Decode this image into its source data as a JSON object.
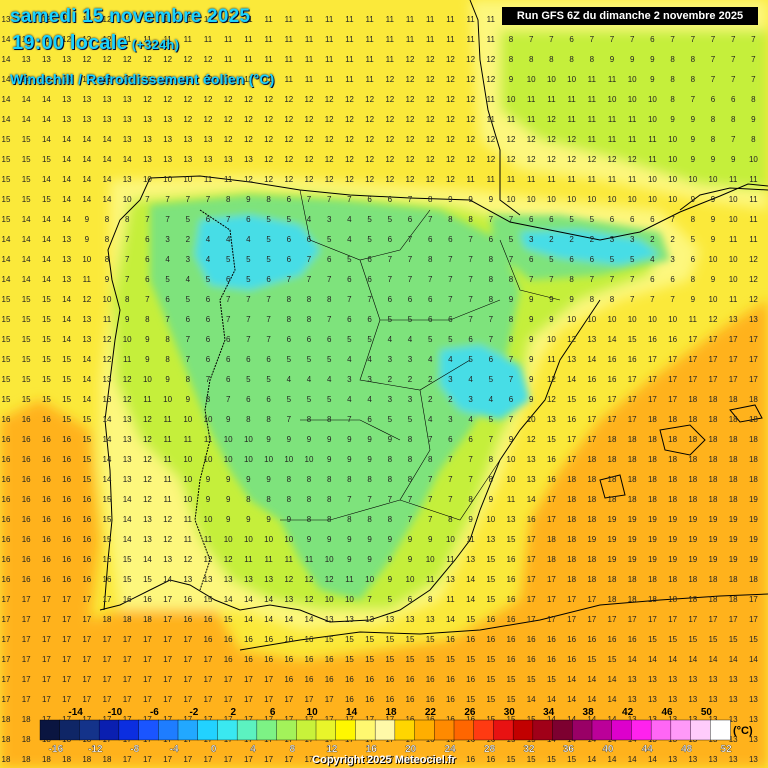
{
  "header": {
    "date_title": "samedi 15 novembre 2025",
    "time_title": "19:00 locale",
    "lead_time": "(+324h)",
    "parameter": "Windchill / Refroidissement éolien (°C)"
  },
  "run_info": "Run GFS 6Z du dimanche 2 novembre 2025",
  "copyright": "Copyright 2025 Meteociel.fr",
  "legend": {
    "unit": "(°C)",
    "scale_values": [
      -16,
      -14,
      -12,
      -10,
      -8,
      -6,
      -4,
      -2,
      0,
      2,
      4,
      6,
      8,
      10,
      12,
      14,
      16,
      18,
      20,
      22,
      24,
      26,
      28,
      30,
      32,
      34,
      36,
      38,
      40,
      42,
      44,
      46,
      48,
      50,
      52
    ],
    "colors": [
      "#0a1540",
      "#0f2666",
      "#14338a",
      "#0a1fb0",
      "#0b2ee0",
      "#1a55ff",
      "#1e7dff",
      "#22a8ff",
      "#22d2ff",
      "#3ae8f0",
      "#5cf2c0",
      "#7df285",
      "#a3f25a",
      "#c8f23a",
      "#e8f52a",
      "#fff700",
      "#fff870",
      "#fff9a8",
      "#ffd600",
      "#ffae00",
      "#ff8a00",
      "#ff6600",
      "#ff3a12",
      "#e81212",
      "#c20000",
      "#a00018",
      "#7d0030",
      "#990066",
      "#bb0099",
      "#dd00cc",
      "#ff22ee",
      "#ff66f5",
      "#ff99f8",
      "#ffccfb",
      "#ffffff"
    ]
  },
  "regions": [
    {
      "name": "offshore",
      "color": "#fbe93a"
    },
    {
      "name": "orange-warm",
      "color": "#ffb21e"
    },
    {
      "name": "light-yellow",
      "color": "#fdf77d"
    },
    {
      "name": "lime",
      "color": "#c5ef3a"
    },
    {
      "name": "green",
      "color": "#7ee37c"
    },
    {
      "name": "cyan",
      "color": "#46dde6"
    }
  ],
  "value_grid": {
    "rows": [
      [
        13,
        12,
        12,
        12,
        12,
        12,
        11,
        11,
        11,
        11,
        11,
        11,
        11,
        11,
        11,
        11,
        11,
        11,
        11,
        11,
        11,
        11,
        11,
        11,
        11,
        11,
        11,
        11,
        11,
        11,
        11,
        11,
        11,
        11,
        11,
        11,
        11,
        11
      ],
      [
        14,
        13,
        12,
        12,
        12,
        12,
        11,
        11,
        11,
        11,
        11,
        11,
        11,
        11,
        11,
        11,
        11,
        11,
        11,
        11,
        11,
        11,
        11,
        11,
        11,
        8,
        7,
        7,
        6,
        7,
        7,
        7,
        6,
        7,
        7,
        7,
        7,
        7
      ],
      [
        14,
        13,
        13,
        13,
        12,
        12,
        12,
        12,
        12,
        12,
        12,
        11,
        11,
        11,
        11,
        11,
        11,
        11,
        11,
        11,
        12,
        12,
        12,
        12,
        12,
        8,
        8,
        8,
        8,
        8,
        9,
        9,
        9,
        8,
        8,
        7,
        7,
        7
      ],
      [
        14,
        14,
        13,
        13,
        13,
        13,
        13,
        12,
        12,
        12,
        12,
        12,
        11,
        11,
        11,
        11,
        11,
        11,
        11,
        12,
        12,
        12,
        12,
        12,
        12,
        9,
        10,
        10,
        10,
        11,
        11,
        10,
        9,
        8,
        8,
        7,
        7,
        7
      ],
      [
        14,
        14,
        14,
        13,
        13,
        13,
        13,
        12,
        12,
        12,
        12,
        12,
        12,
        12,
        12,
        12,
        12,
        12,
        12,
        12,
        12,
        12,
        12,
        12,
        11,
        10,
        11,
        11,
        11,
        11,
        10,
        10,
        10,
        8,
        7,
        6,
        6,
        8
      ],
      [
        14,
        14,
        14,
        13,
        13,
        13,
        13,
        13,
        13,
        12,
        12,
        12,
        12,
        12,
        12,
        12,
        12,
        12,
        12,
        12,
        12,
        12,
        12,
        12,
        11,
        11,
        11,
        12,
        11,
        11,
        11,
        11,
        10,
        9,
        9,
        8,
        8,
        9
      ],
      [
        15,
        15,
        14,
        14,
        14,
        14,
        13,
        13,
        13,
        13,
        13,
        12,
        12,
        12,
        12,
        12,
        12,
        12,
        12,
        12,
        12,
        12,
        12,
        12,
        12,
        12,
        12,
        12,
        12,
        11,
        11,
        11,
        11,
        10,
        9,
        8,
        7,
        8
      ],
      [
        15,
        15,
        15,
        14,
        14,
        14,
        14,
        13,
        13,
        13,
        13,
        13,
        13,
        12,
        12,
        12,
        12,
        12,
        12,
        12,
        12,
        12,
        12,
        12,
        12,
        12,
        12,
        12,
        12,
        12,
        12,
        12,
        11,
        10,
        9,
        9,
        9,
        10
      ],
      [
        15,
        15,
        14,
        14,
        14,
        14,
        13,
        10,
        10,
        10,
        11,
        11,
        12,
        12,
        12,
        12,
        12,
        12,
        12,
        12,
        12,
        12,
        12,
        11,
        11,
        11,
        11,
        11,
        11,
        11,
        11,
        11,
        10,
        10,
        10,
        10,
        11,
        11
      ],
      [
        15,
        15,
        15,
        14,
        14,
        14,
        10,
        7,
        7,
        7,
        7,
        8,
        9,
        8,
        6,
        7,
        7,
        7,
        6,
        6,
        7,
        8,
        9,
        9,
        9,
        10,
        10,
        10,
        10,
        10,
        10,
        10,
        10,
        10,
        9,
        9,
        10,
        11
      ],
      [
        15,
        14,
        14,
        14,
        9,
        8,
        8,
        7,
        7,
        5,
        6,
        7,
        6,
        5,
        5,
        4,
        3,
        4,
        5,
        5,
        6,
        7,
        8,
        8,
        7,
        7,
        6,
        6,
        5,
        5,
        6,
        6,
        6,
        7,
        8,
        9,
        10,
        11
      ],
      [
        14,
        14,
        14,
        13,
        9,
        8,
        7,
        6,
        3,
        2,
        4,
        4,
        4,
        5,
        6,
        6,
        5,
        4,
        5,
        6,
        7,
        6,
        6,
        7,
        6,
        5,
        3,
        2,
        2,
        2,
        3,
        3,
        2,
        2,
        5,
        9,
        11,
        11
      ],
      [
        14,
        14,
        14,
        13,
        10,
        8,
        7,
        6,
        4,
        3,
        4,
        5,
        5,
        5,
        6,
        7,
        6,
        5,
        6,
        7,
        7,
        8,
        7,
        7,
        8,
        7,
        6,
        5,
        6,
        6,
        5,
        5,
        4,
        3,
        6,
        10,
        10,
        12
      ],
      [
        14,
        14,
        14,
        13,
        11,
        9,
        7,
        6,
        5,
        4,
        5,
        6,
        5,
        6,
        7,
        7,
        7,
        6,
        6,
        7,
        7,
        7,
        7,
        7,
        8,
        8,
        7,
        7,
        8,
        7,
        7,
        7,
        6,
        6,
        8,
        9,
        10,
        12
      ],
      [
        15,
        15,
        15,
        14,
        12,
        10,
        8,
        7,
        6,
        5,
        6,
        7,
        7,
        7,
        8,
        8,
        8,
        7,
        7,
        6,
        6,
        6,
        7,
        7,
        8,
        9,
        9,
        9,
        9,
        8,
        8,
        7,
        7,
        7,
        9,
        10,
        11,
        12
      ],
      [
        15,
        15,
        15,
        14,
        13,
        11,
        9,
        8,
        7,
        6,
        6,
        7,
        7,
        7,
        8,
        8,
        7,
        6,
        6,
        5,
        5,
        6,
        6,
        7,
        7,
        8,
        9,
        9,
        10,
        10,
        10,
        10,
        10,
        10,
        11,
        12,
        13,
        13
      ],
      [
        15,
        15,
        15,
        14,
        13,
        12,
        10,
        9,
        8,
        7,
        6,
        6,
        7,
        7,
        6,
        6,
        6,
        5,
        5,
        4,
        4,
        5,
        5,
        6,
        7,
        8,
        9,
        10,
        12,
        13,
        14,
        15,
        16,
        16,
        17,
        17,
        17,
        17
      ],
      [
        15,
        15,
        15,
        15,
        14,
        12,
        11,
        9,
        8,
        7,
        6,
        6,
        6,
        6,
        5,
        5,
        5,
        4,
        4,
        3,
        3,
        4,
        4,
        5,
        6,
        7,
        9,
        11,
        13,
        14,
        16,
        16,
        17,
        17,
        17,
        17,
        17,
        17
      ],
      [
        15,
        15,
        15,
        15,
        14,
        13,
        12,
        10,
        9,
        8,
        7,
        6,
        5,
        5,
        4,
        4,
        4,
        3,
        3,
        2,
        2,
        2,
        3,
        4,
        5,
        7,
        9,
        12,
        14,
        16,
        16,
        17,
        17,
        17,
        17,
        17,
        17,
        17
      ],
      [
        15,
        15,
        15,
        15,
        14,
        13,
        12,
        11,
        10,
        9,
        8,
        7,
        6,
        6,
        5,
        5,
        5,
        4,
        4,
        3,
        3,
        2,
        2,
        3,
        4,
        6,
        9,
        12,
        15,
        16,
        17,
        17,
        17,
        17,
        18,
        18,
        18,
        18
      ],
      [
        16,
        16,
        16,
        15,
        15,
        14,
        13,
        12,
        11,
        10,
        10,
        9,
        8,
        8,
        7,
        8,
        8,
        7,
        6,
        5,
        5,
        4,
        3,
        4,
        5,
        7,
        10,
        13,
        16,
        17,
        17,
        17,
        18,
        18,
        18,
        18,
        18,
        18
      ],
      [
        16,
        16,
        16,
        16,
        15,
        14,
        13,
        12,
        11,
        11,
        11,
        10,
        10,
        9,
        9,
        9,
        9,
        9,
        9,
        9,
        8,
        7,
        6,
        6,
        7,
        9,
        12,
        15,
        17,
        17,
        18,
        18,
        18,
        18,
        18,
        18,
        18,
        18
      ],
      [
        16,
        16,
        16,
        16,
        15,
        14,
        13,
        12,
        11,
        10,
        10,
        10,
        10,
        10,
        10,
        10,
        9,
        9,
        9,
        8,
        8,
        8,
        7,
        7,
        8,
        10,
        13,
        16,
        17,
        18,
        18,
        18,
        18,
        18,
        18,
        18,
        18,
        18
      ],
      [
        16,
        16,
        16,
        16,
        15,
        14,
        13,
        12,
        11,
        10,
        9,
        9,
        9,
        9,
        8,
        8,
        8,
        8,
        8,
        8,
        8,
        7,
        7,
        7,
        8,
        10,
        13,
        16,
        18,
        18,
        18,
        18,
        18,
        18,
        18,
        18,
        18,
        18
      ],
      [
        16,
        16,
        16,
        16,
        16,
        15,
        14,
        12,
        11,
        10,
        9,
        9,
        8,
        8,
        8,
        8,
        8,
        7,
        7,
        7,
        7,
        7,
        7,
        8,
        9,
        11,
        14,
        17,
        18,
        18,
        18,
        18,
        18,
        18,
        18,
        18,
        18,
        19
      ],
      [
        16,
        16,
        16,
        16,
        16,
        15,
        14,
        13,
        12,
        11,
        10,
        9,
        9,
        9,
        9,
        8,
        8,
        8,
        8,
        8,
        7,
        7,
        8,
        9,
        10,
        13,
        16,
        17,
        18,
        18,
        19,
        19,
        19,
        19,
        19,
        19,
        19,
        19
      ],
      [
        16,
        16,
        16,
        16,
        16,
        15,
        14,
        13,
        12,
        11,
        11,
        10,
        10,
        10,
        10,
        9,
        9,
        9,
        9,
        9,
        9,
        9,
        10,
        11,
        13,
        15,
        17,
        18,
        18,
        19,
        19,
        19,
        19,
        19,
        19,
        19,
        19,
        19
      ],
      [
        16,
        16,
        16,
        16,
        16,
        16,
        15,
        14,
        13,
        12,
        12,
        12,
        11,
        11,
        11,
        11,
        10,
        9,
        9,
        9,
        9,
        10,
        11,
        13,
        15,
        16,
        17,
        18,
        18,
        18,
        19,
        19,
        19,
        19,
        19,
        19,
        19,
        19
      ],
      [
        16,
        16,
        16,
        16,
        16,
        16,
        15,
        15,
        14,
        13,
        13,
        13,
        13,
        13,
        12,
        12,
        12,
        11,
        10,
        9,
        10,
        11,
        13,
        14,
        15,
        16,
        17,
        17,
        18,
        18,
        18,
        18,
        18,
        18,
        18,
        18,
        18,
        18
      ],
      [
        17,
        17,
        17,
        17,
        17,
        17,
        16,
        16,
        17,
        16,
        15,
        14,
        14,
        14,
        13,
        12,
        10,
        10,
        7,
        5,
        6,
        8,
        11,
        14,
        15,
        16,
        17,
        17,
        17,
        17,
        18,
        18,
        18,
        18,
        18,
        18,
        18,
        17
      ],
      [
        17,
        17,
        17,
        17,
        17,
        18,
        18,
        18,
        17,
        16,
        16,
        15,
        14,
        14,
        14,
        14,
        13,
        13,
        13,
        13,
        13,
        13,
        14,
        15,
        16,
        16,
        17,
        17,
        17,
        17,
        17,
        17,
        17,
        17,
        17,
        17,
        17,
        17
      ],
      [
        17,
        17,
        17,
        17,
        17,
        17,
        17,
        17,
        17,
        17,
        16,
        16,
        16,
        16,
        16,
        16,
        15,
        15,
        15,
        15,
        15,
        15,
        16,
        16,
        16,
        16,
        16,
        16,
        16,
        16,
        16,
        16,
        15,
        15,
        15,
        15,
        15,
        15
      ],
      [
        17,
        17,
        17,
        17,
        17,
        17,
        17,
        17,
        17,
        17,
        17,
        16,
        16,
        16,
        16,
        16,
        16,
        15,
        15,
        15,
        15,
        15,
        15,
        15,
        15,
        16,
        16,
        16,
        16,
        15,
        15,
        14,
        14,
        14,
        14,
        14,
        14,
        14
      ],
      [
        17,
        17,
        17,
        17,
        17,
        17,
        17,
        17,
        17,
        17,
        17,
        17,
        17,
        17,
        16,
        16,
        16,
        16,
        16,
        16,
        16,
        16,
        16,
        16,
        15,
        15,
        15,
        15,
        14,
        14,
        14,
        13,
        13,
        13,
        13,
        13,
        13,
        13
      ],
      [
        17,
        17,
        17,
        17,
        17,
        17,
        17,
        17,
        17,
        17,
        17,
        17,
        17,
        17,
        17,
        17,
        17,
        16,
        16,
        16,
        16,
        16,
        16,
        15,
        15,
        15,
        14,
        14,
        14,
        14,
        14,
        13,
        13,
        13,
        13,
        13,
        13,
        13
      ],
      [
        18,
        18,
        17,
        17,
        17,
        17,
        17,
        17,
        17,
        17,
        17,
        17,
        17,
        17,
        17,
        17,
        17,
        17,
        17,
        17,
        16,
        16,
        16,
        16,
        15,
        15,
        15,
        14,
        14,
        14,
        14,
        13,
        13,
        13,
        13,
        13,
        13,
        13
      ],
      [
        18,
        18,
        18,
        18,
        18,
        17,
        17,
        17,
        17,
        17,
        17,
        17,
        17,
        17,
        17,
        17,
        17,
        17,
        17,
        17,
        17,
        16,
        16,
        16,
        16,
        15,
        15,
        14,
        14,
        14,
        14,
        14,
        13,
        13,
        13,
        13,
        13,
        13
      ],
      [
        18,
        18,
        18,
        18,
        18,
        18,
        17,
        17,
        17,
        17,
        17,
        17,
        17,
        17,
        17,
        17,
        17,
        17,
        17,
        17,
        17,
        17,
        16,
        16,
        16,
        15,
        15,
        15,
        15,
        14,
        14,
        14,
        14,
        13,
        13,
        13,
        13,
        13
      ]
    ]
  }
}
